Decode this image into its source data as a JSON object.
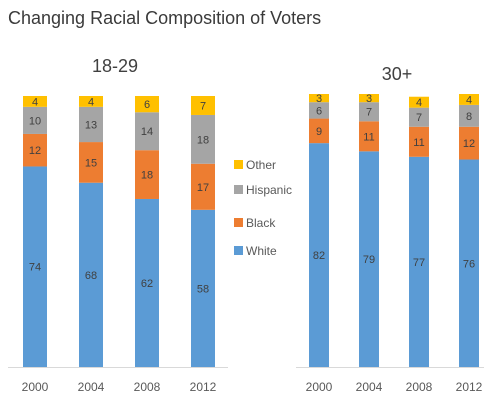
{
  "title": "Changing Racial Composition of Voters",
  "colors": {
    "White": "#5b9bd5",
    "Black": "#ed7d31",
    "Hispanic": "#a5a5a5",
    "Other": "#ffc000",
    "baseline": "#d9d9d9",
    "label": "#404040"
  },
  "chart_data": [
    {
      "type": "bar",
      "stacked": true,
      "title": "18-29",
      "categories": [
        "2000",
        "2004",
        "2008",
        "2012"
      ],
      "ylim": [
        0,
        100
      ],
      "series": [
        {
          "name": "White",
          "values": [
            74,
            68,
            62,
            58
          ]
        },
        {
          "name": "Black",
          "values": [
            12,
            15,
            18,
            17
          ]
        },
        {
          "name": "Hispanic",
          "values": [
            10,
            13,
            14,
            18
          ]
        },
        {
          "name": "Other",
          "values": [
            4,
            4,
            6,
            7
          ]
        }
      ]
    },
    {
      "type": "bar",
      "stacked": true,
      "title": "30+",
      "categories": [
        "2000",
        "2004",
        "2008",
        "2012"
      ],
      "ylim": [
        0,
        100
      ],
      "series": [
        {
          "name": "White",
          "values": [
            82,
            79,
            77,
            76
          ]
        },
        {
          "name": "Black",
          "values": [
            9,
            11,
            11,
            12
          ]
        },
        {
          "name": "Hispanic",
          "values": [
            6,
            7,
            7,
            8
          ]
        },
        {
          "name": "Other",
          "values": [
            3,
            3,
            4,
            4
          ]
        }
      ]
    }
  ],
  "legend": {
    "placement": "between-panels",
    "order": [
      "Other",
      "Hispanic",
      "Black",
      "White"
    ]
  }
}
